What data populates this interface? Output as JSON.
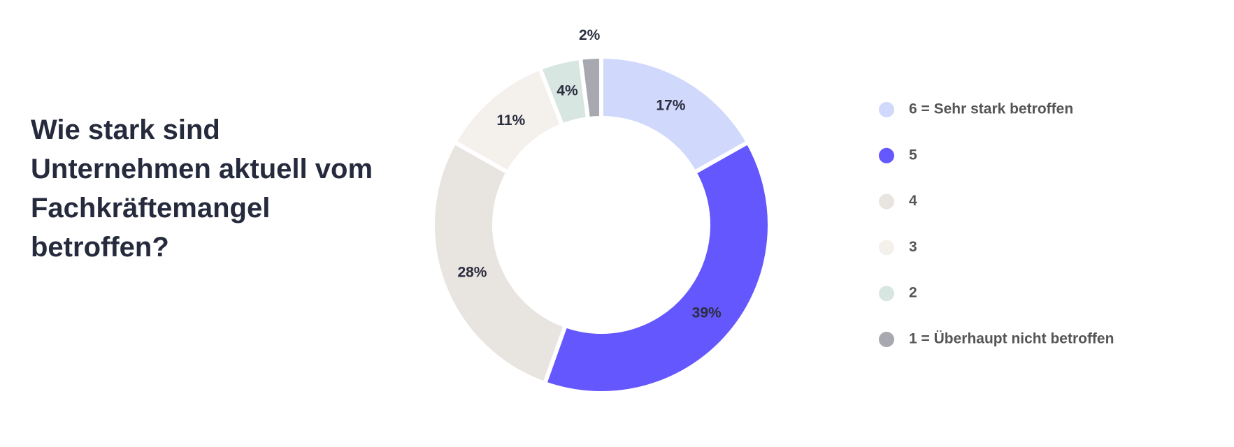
{
  "chart_data": {
    "type": "donut",
    "title": "Wie stark sind Unternehmen aktuell vom Fachkräftemangel betroffen?",
    "categories": [
      "6 = Sehr stark betroffen",
      "5",
      "4",
      "3",
      "2",
      "1 = Überhaupt nicht betroffen"
    ],
    "values": [
      17,
      39,
      28,
      11,
      4,
      2
    ],
    "value_labels": [
      "17%",
      "39%",
      "28%",
      "11%",
      "4%",
      "2%"
    ],
    "colors": [
      "#d0d8fc",
      "#6457fd",
      "#e8e4e0",
      "#f4f0ec",
      "#d8e6e2",
      "#a8a9b0"
    ],
    "legend": "right"
  }
}
